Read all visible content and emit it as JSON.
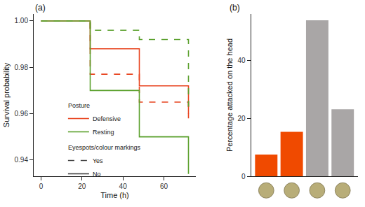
{
  "chart_data": [
    {
      "type": "line",
      "title": "(a)",
      "x_label": "Time (h)",
      "y_label": "Survival probability",
      "x": [
        0,
        24,
        48,
        72
      ],
      "xlim": [
        -3.6,
        75.6
      ],
      "xticks": [
        0,
        20,
        40,
        60
      ],
      "ylim": [
        0.933,
        1.003
      ],
      "yticks": [
        0.94,
        0.96,
        0.98,
        {
          "value": 1,
          "label": "1.00"
        }
      ],
      "legend": "bottom left",
      "legend_groups": [
        {
          "title": "Posture",
          "items": [
            "Defensive",
            "Resting"
          ]
        },
        {
          "title": "Eyespots/colour markings",
          "items": [
            "Yes",
            "No"
          ]
        }
      ],
      "series": [
        {
          "posture": "Defensive",
          "markings": "Yes",
          "color": "#e8431e",
          "line_style": "dash",
          "values": [
            1,
            0.977,
            0.965,
            0.958
          ]
        },
        {
          "posture": "Defensive",
          "markings": "No",
          "color": "#e8431e",
          "line_style": "solid",
          "values": [
            1,
            0.988,
            0.972,
            0.96
          ]
        },
        {
          "posture": "Resting",
          "markings": "Yes",
          "color": "#5aa02c",
          "line_style": "dash",
          "values": [
            1,
            0.996,
            0.992,
            0.963
          ]
        },
        {
          "posture": "Resting",
          "markings": "No",
          "color": "#5aa02c",
          "line_style": "solid",
          "values": [
            1,
            0.97,
            0.95,
            0.934
          ]
        }
      ]
    },
    {
      "type": "bar",
      "title": "(b)",
      "y_label": "Percentage attacked on the head",
      "categories": [
        null,
        null,
        null,
        null
      ],
      "values": [
        7.5,
        15.3,
        53.8,
        23.1
      ],
      "colors": [
        "#f04a00",
        "#f04a00",
        "#a9a6a6",
        "#a9a6a6"
      ],
      "ylim": [
        0,
        56
      ],
      "yticks": [
        0,
        20,
        40
      ],
      "tick_labels": "y"
    }
  ]
}
